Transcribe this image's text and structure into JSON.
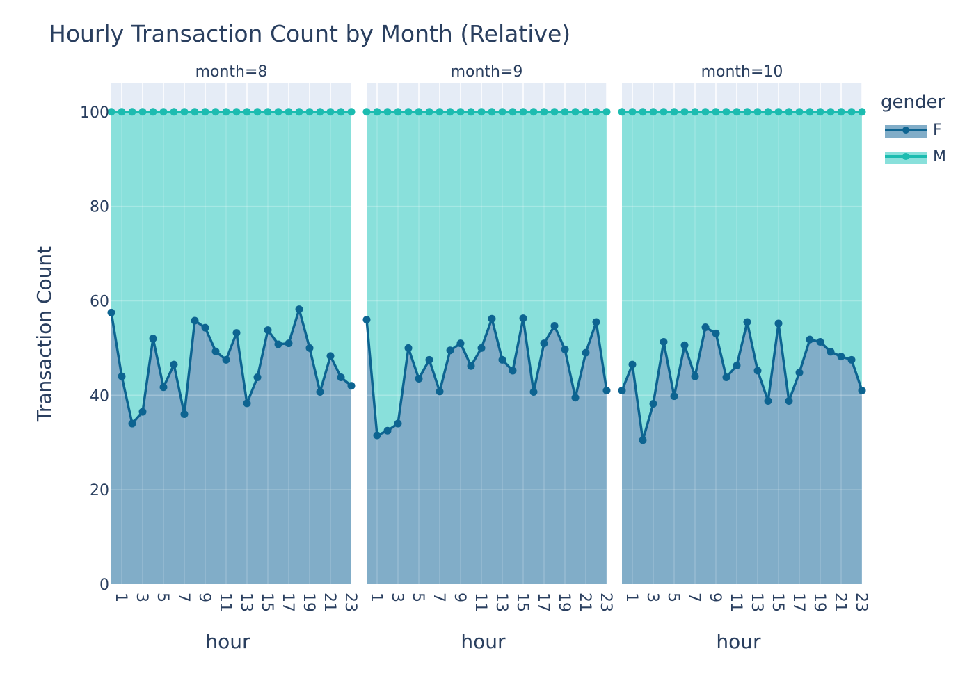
{
  "chart_data": {
    "type": "area",
    "title": "Hourly Transaction Count by Month (Relative)",
    "ylabel": "Transaction Count",
    "xlabel": "hour",
    "ylim": [
      0,
      106
    ],
    "xlim": [
      0,
      23
    ],
    "y_ticks": [
      0,
      20,
      40,
      60,
      80,
      100
    ],
    "x_tick_labels": [
      "1",
      "3",
      "5",
      "7",
      "9",
      "11",
      "13",
      "15",
      "17",
      "19",
      "21",
      "23"
    ],
    "x_tick_values": [
      1,
      3,
      5,
      7,
      9,
      11,
      13,
      15,
      17,
      19,
      21,
      23
    ],
    "stacking": "relative (percent of total)",
    "grid": true,
    "legend": {
      "title": "gender",
      "placement": "top-right",
      "items": [
        {
          "name": "F",
          "color": "#0d6491",
          "fill": "#81adc8"
        },
        {
          "name": "M",
          "color": "#1cbcb0",
          "fill": "#89e0db"
        }
      ]
    },
    "panels": [
      {
        "title": "month=8",
        "x": [
          0,
          1,
          2,
          3,
          4,
          5,
          6,
          7,
          8,
          9,
          10,
          11,
          12,
          13,
          14,
          15,
          16,
          17,
          18,
          19,
          20,
          21,
          22,
          23
        ],
        "series": [
          {
            "name": "F",
            "values": [
              57.5,
              44.0,
              34.0,
              36.5,
              52.0,
              41.7,
              46.5,
              36.0,
              55.8,
              54.3,
              49.3,
              47.5,
              53.2,
              38.3,
              43.8,
              53.8,
              50.8,
              51.0,
              58.2,
              50.0,
              40.7,
              48.3,
              43.8,
              42.0
            ]
          },
          {
            "name": "M",
            "values": [
              100,
              100,
              100,
              100,
              100,
              100,
              100,
              100,
              100,
              100,
              100,
              100,
              100,
              100,
              100,
              100,
              100,
              100,
              100,
              100,
              100,
              100,
              100,
              100
            ]
          }
        ]
      },
      {
        "title": "month=9",
        "x": [
          0,
          1,
          2,
          3,
          4,
          5,
          6,
          7,
          8,
          9,
          10,
          11,
          12,
          13,
          14,
          15,
          16,
          17,
          18,
          19,
          20,
          21,
          22,
          23
        ],
        "series": [
          {
            "name": "F",
            "values": [
              56.0,
              31.5,
              32.5,
              34.0,
              50.0,
              43.5,
              47.5,
              40.8,
              49.5,
              51.0,
              46.2,
              50.0,
              56.2,
              47.5,
              45.2,
              56.3,
              40.7,
              51.0,
              54.7,
              49.7,
              39.5,
              49.0,
              55.5,
              41.0
            ]
          },
          {
            "name": "M",
            "values": [
              100,
              100,
              100,
              100,
              100,
              100,
              100,
              100,
              100,
              100,
              100,
              100,
              100,
              100,
              100,
              100,
              100,
              100,
              100,
              100,
              100,
              100,
              100,
              100
            ]
          }
        ]
      },
      {
        "title": "month=10",
        "x": [
          0,
          1,
          2,
          3,
          4,
          5,
          6,
          7,
          8,
          9,
          10,
          11,
          12,
          13,
          14,
          15,
          16,
          17,
          18,
          19,
          20,
          21,
          22,
          23
        ],
        "series": [
          {
            "name": "F",
            "values": [
              41.0,
              46.5,
              30.5,
              38.2,
              51.3,
              39.8,
              50.6,
              44.0,
              54.4,
              53.1,
              43.8,
              46.3,
              55.5,
              45.2,
              38.8,
              55.2,
              38.8,
              44.8,
              51.8,
              51.3,
              49.2,
              48.2,
              47.5,
              41.0
            ]
          },
          {
            "name": "M",
            "values": [
              100,
              100,
              100,
              100,
              100,
              100,
              100,
              100,
              100,
              100,
              100,
              100,
              100,
              100,
              100,
              100,
              100,
              100,
              100,
              100,
              100,
              100,
              100,
              100
            ]
          }
        ]
      }
    ]
  }
}
